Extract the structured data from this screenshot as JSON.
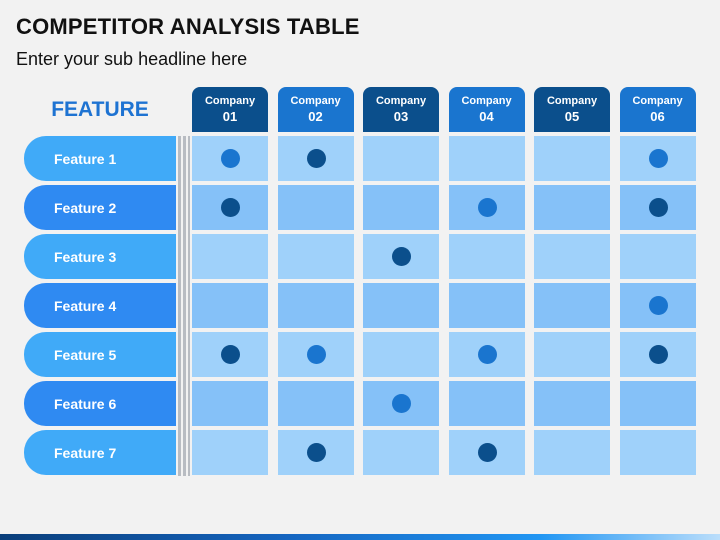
{
  "header": {
    "title": "COMPETITOR ANALYSIS TABLE",
    "subtitle": "Enter your sub headline here"
  },
  "table": {
    "feature_heading": "FEATURE",
    "companies": [
      {
        "label": "Company",
        "number": "01",
        "shade": "dark"
      },
      {
        "label": "Company",
        "number": "02",
        "shade": "light"
      },
      {
        "label": "Company",
        "number": "03",
        "shade": "dark"
      },
      {
        "label": "Company",
        "number": "04",
        "shade": "light"
      },
      {
        "label": "Company",
        "number": "05",
        "shade": "dark"
      },
      {
        "label": "Company",
        "number": "06",
        "shade": "light"
      }
    ],
    "features": [
      {
        "label": "Feature 1",
        "marks": [
          {
            "company": 0,
            "shade": "medium"
          },
          {
            "company": 1,
            "shade": "dark"
          },
          {
            "company": 5,
            "shade": "medium"
          }
        ]
      },
      {
        "label": "Feature 2",
        "marks": [
          {
            "company": 0,
            "shade": "dark"
          },
          {
            "company": 3,
            "shade": "medium"
          },
          {
            "company": 5,
            "shade": "dark"
          }
        ]
      },
      {
        "label": "Feature 3",
        "marks": [
          {
            "company": 2,
            "shade": "dark"
          }
        ]
      },
      {
        "label": "Feature 4",
        "marks": [
          {
            "company": 5,
            "shade": "medium"
          }
        ]
      },
      {
        "label": "Feature 5",
        "marks": [
          {
            "company": 0,
            "shade": "dark"
          },
          {
            "company": 1,
            "shade": "medium"
          },
          {
            "company": 3,
            "shade": "medium"
          },
          {
            "company": 5,
            "shade": "dark"
          }
        ]
      },
      {
        "label": "Feature 6",
        "marks": [
          {
            "company": 2,
            "shade": "medium"
          }
        ]
      },
      {
        "label": "Feature 7",
        "marks": [
          {
            "company": 1,
            "shade": "dark"
          },
          {
            "company": 3,
            "shade": "dark"
          }
        ]
      }
    ]
  },
  "colors": {
    "dark_blue": "#0b4f8c",
    "medium_blue": "#1a75cf",
    "pill_light": "#40aaf8",
    "pill_dark": "#2f8af2",
    "cell_light": "#9fd1fa",
    "cell_dark": "#85c1f8",
    "heading": "#1e73d2"
  }
}
